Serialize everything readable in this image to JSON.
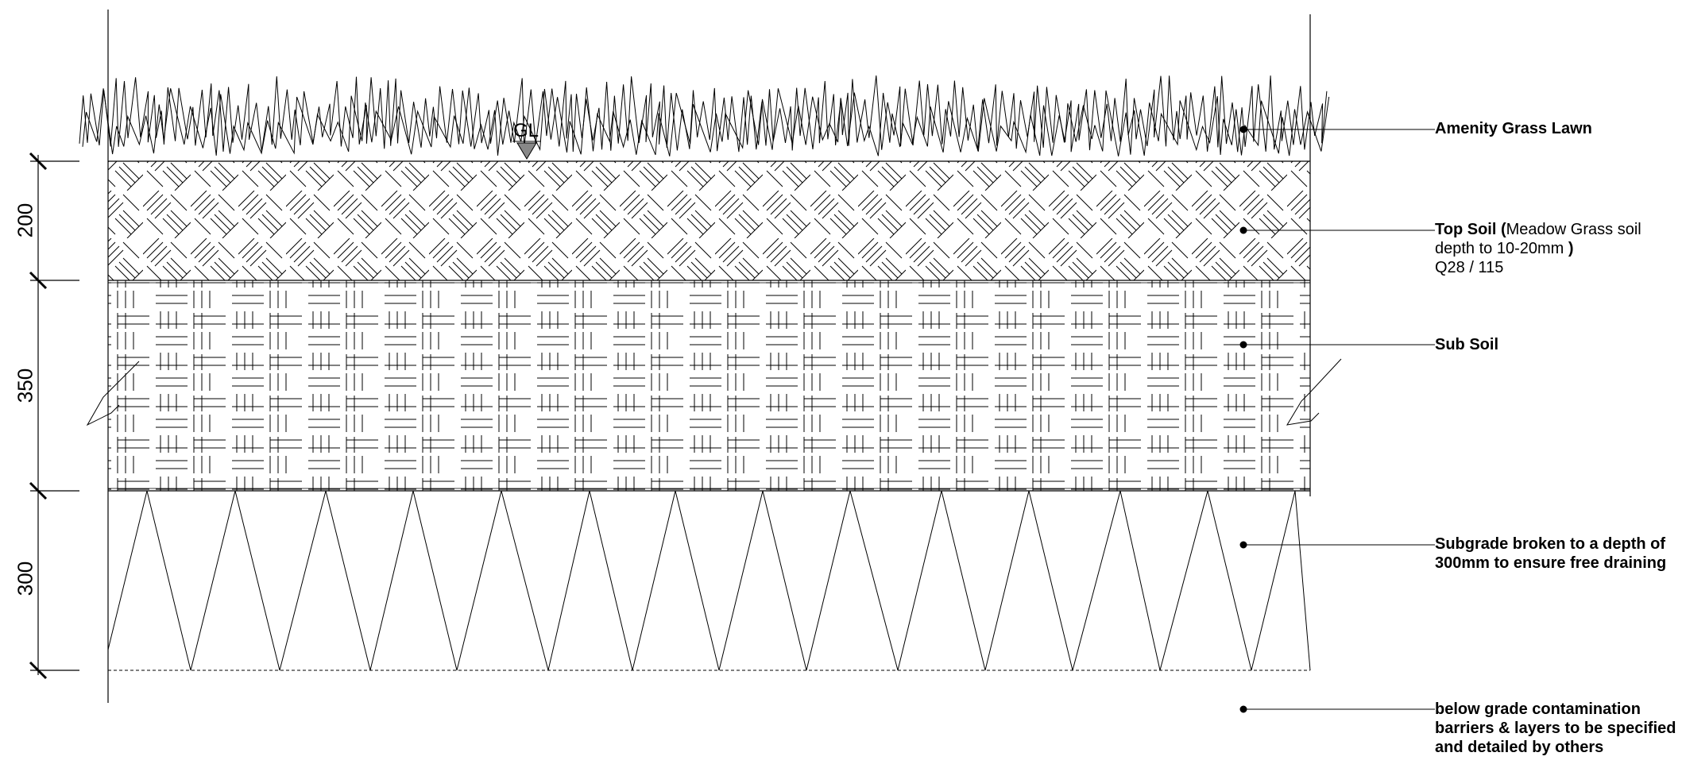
{
  "ground_level_marker": "GL",
  "dimensions": [
    "200",
    "350",
    "300"
  ],
  "layers": [
    {
      "title": "Amenity Grass Lawn",
      "detail_lines": []
    },
    {
      "title": "Top Soil",
      "title_open": "(",
      "title_detail": "Meadow Grass soil",
      "detail_line2": "depth to 10-20mm",
      "detail_close": ")",
      "reference": "Q28 / 115"
    },
    {
      "title": "Sub Soil"
    },
    {
      "line1": "Subgrade broken to a depth of",
      "line2": "300mm to ensure free draining"
    },
    {
      "line1": "below grade contamination",
      "line2": "barriers & layers to be specified",
      "line3": "and detailed by others"
    }
  ]
}
